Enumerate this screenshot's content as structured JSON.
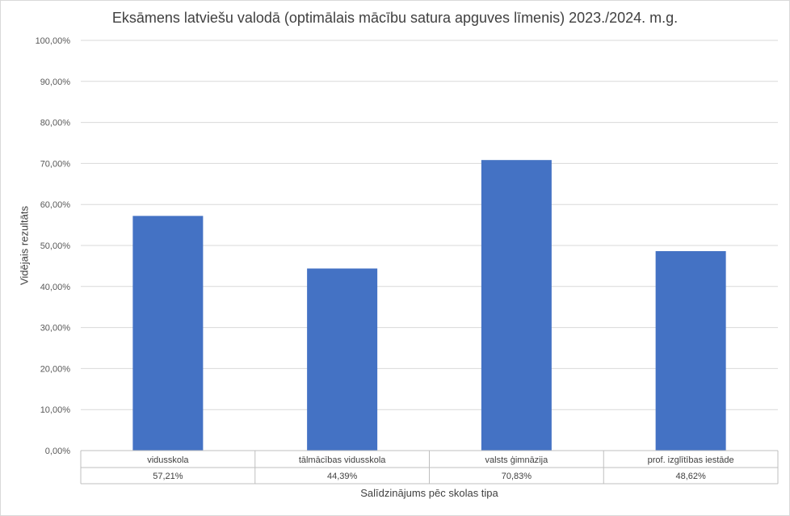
{
  "chart_data": {
    "type": "bar",
    "title": "Eksāmens latviešu valodā (optimālais mācību satura apguves līmenis) 2023./2024. m.g.",
    "xlabel": "Salīdzinājums pēc skolas tipa",
    "ylabel": "Vidējais rezultāts",
    "categories": [
      "vidusskola",
      "tālmācības vidusskola",
      "valsts ģimnāzija",
      "prof. izglītības iestāde"
    ],
    "values": [
      57.21,
      44.39,
      70.83,
      48.62
    ],
    "value_labels": [
      "57,21%",
      "44,39%",
      "70,83%",
      "48,62%"
    ],
    "ylim": [
      0,
      100
    ],
    "yticks": [
      0,
      10,
      20,
      30,
      40,
      50,
      60,
      70,
      80,
      90,
      100
    ],
    "ytick_labels": [
      "0,00%",
      "10,00%",
      "20,00%",
      "30,00%",
      "40,00%",
      "50,00%",
      "60,00%",
      "70,00%",
      "80,00%",
      "90,00%",
      "100,00%"
    ],
    "grid": true,
    "legend": "none",
    "data_table": true,
    "bar_color": "#4472c4"
  }
}
